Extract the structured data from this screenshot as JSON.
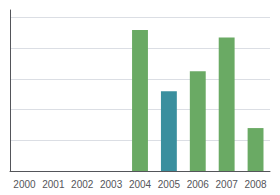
{
  "chart_data": {
    "type": "bar",
    "categories": [
      "2000",
      "2001",
      "2002",
      "2003",
      "2004",
      "2005",
      "2006",
      "2007",
      "2008"
    ],
    "values": [
      0,
      0,
      0,
      0,
      92,
      52,
      65,
      87,
      28
    ],
    "colors": [
      "#6aaa64",
      "#6aaa64",
      "#6aaa64",
      "#6aaa64",
      "#6aaa64",
      "#3a8f9e",
      "#6aaa64",
      "#6aaa64",
      "#6aaa64"
    ],
    "ylim": [
      0,
      105
    ],
    "yticks": [
      20,
      40,
      60,
      80,
      100
    ],
    "grid": true,
    "tick_labels": "x"
  }
}
